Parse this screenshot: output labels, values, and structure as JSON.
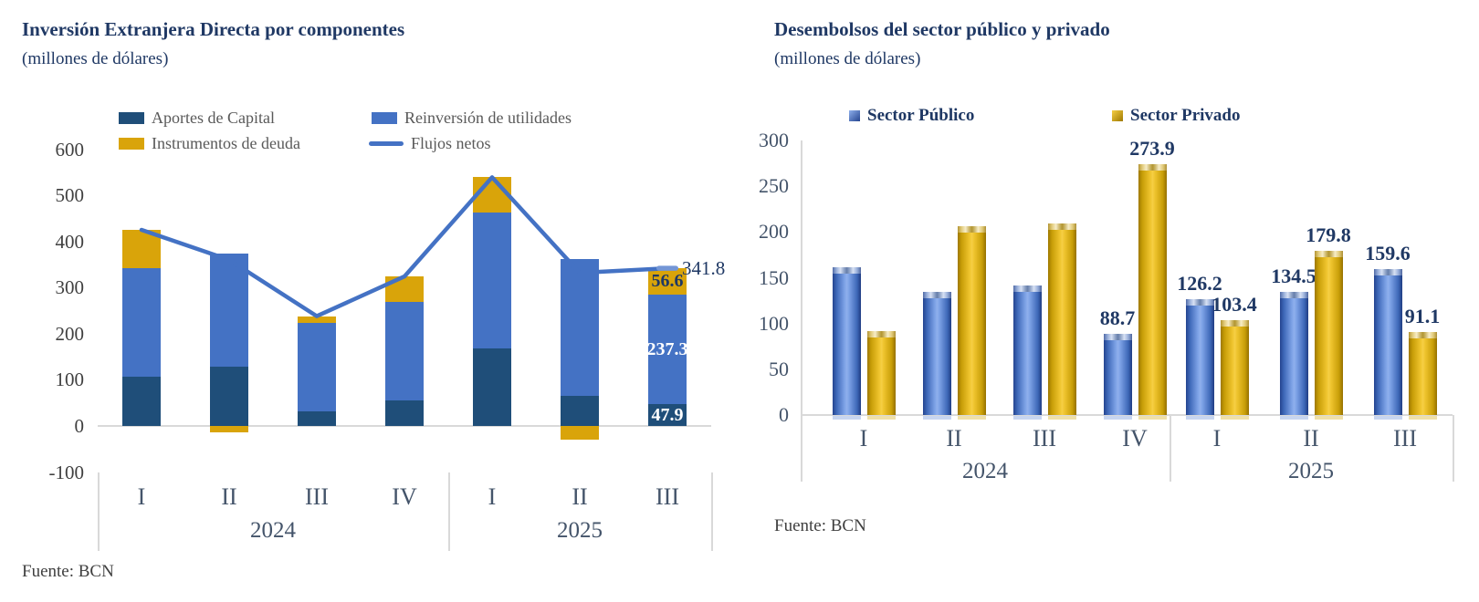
{
  "chart_data": [
    {
      "id": "fdi-by-components",
      "type": "bar",
      "subtype": "stacked-bars-with-line",
      "title": "Inversión Extranjera Directa por componentes",
      "subtitle": "(millones de dólares)",
      "source": "Fuente: BCN",
      "categories": [
        "I",
        "II",
        "III",
        "IV",
        "I",
        "II",
        "III"
      ],
      "year_groups": [
        {
          "label": "2024",
          "span": 4
        },
        {
          "label": "2025",
          "span": 3
        }
      ],
      "yticks": [
        600,
        500,
        400,
        300,
        200,
        100,
        0,
        -100
      ],
      "ylim": [
        -100,
        600
      ],
      "grid": false,
      "legend_position": "top",
      "series": [
        {
          "name": "Aportes de Capital",
          "type": "bar",
          "color": "#1F4E79",
          "values": [
            106,
            128,
            32,
            55,
            168,
            66,
            47.9
          ],
          "labels": [
            null,
            null,
            null,
            null,
            null,
            null,
            "47.9"
          ],
          "label_color": "#FFFFFF"
        },
        {
          "name": "Reinversión de utilidades",
          "type": "bar",
          "color": "#4472C4",
          "values": [
            237,
            245,
            191,
            214,
            295,
            296,
            237.3
          ],
          "labels": [
            null,
            null,
            null,
            null,
            null,
            null,
            "237.3"
          ],
          "label_color": "#FFFFFF"
        },
        {
          "name": "Instrumentos de deuda",
          "type": "bar",
          "color": "#D9A40A",
          "values": [
            82,
            -13,
            15,
            55,
            76,
            -30,
            56.6
          ],
          "labels": [
            null,
            null,
            null,
            null,
            null,
            null,
            "56.6"
          ],
          "label_color": "#1F3864"
        },
        {
          "name": "Flujos netos",
          "type": "line",
          "color": "#4472C4",
          "values": [
            425,
            360,
            238,
            324,
            539,
            332,
            341.8
          ],
          "labels": [
            null,
            null,
            null,
            null,
            null,
            null,
            "341.8"
          ],
          "label_color": "#1F3864"
        }
      ]
    },
    {
      "id": "public-private-disbursements",
      "type": "bar",
      "subtype": "grouped-3d-bars",
      "title": "Desembolsos del sector público y privado",
      "subtitle": "(millones de dólares)",
      "source": "Fuente: BCN",
      "categories": [
        "I",
        "II",
        "III",
        "IV",
        "I",
        "II",
        "III"
      ],
      "year_groups": [
        {
          "label": "2024",
          "span": 4
        },
        {
          "label": "2025",
          "span": 3
        }
      ],
      "yticks": [
        300,
        250,
        200,
        150,
        100,
        50,
        0
      ],
      "ylim": [
        0,
        300
      ],
      "grid": false,
      "legend_position": "top",
      "series": [
        {
          "name": "Sector Público",
          "color": "#4472C4",
          "values": [
            161,
            135,
            142,
            88.7,
            126.2,
            134.5,
            159.6
          ],
          "labels": [
            null,
            null,
            null,
            "88.7",
            "126.2",
            "134.5",
            "159.6"
          ]
        },
        {
          "name": "Sector Privado",
          "color": "#D9A40A",
          "values": [
            92,
            206,
            209,
            273.9,
            103.4,
            179.8,
            91.1
          ],
          "labels": [
            null,
            null,
            null,
            "273.9",
            "103.4",
            "179.8",
            "91.1"
          ]
        }
      ]
    }
  ],
  "colors": {
    "title_navy": "#1F3864",
    "axis_label_gray": "#404040",
    "category_label": "#44546A",
    "legend_text_gray": "#595959",
    "axis_line": "#D9D9D9",
    "bar_navy": "#1F4E79",
    "bar_blue": "#4472C4",
    "bar_gold": "#D9A40A",
    "line_blue": "#4472C4"
  }
}
